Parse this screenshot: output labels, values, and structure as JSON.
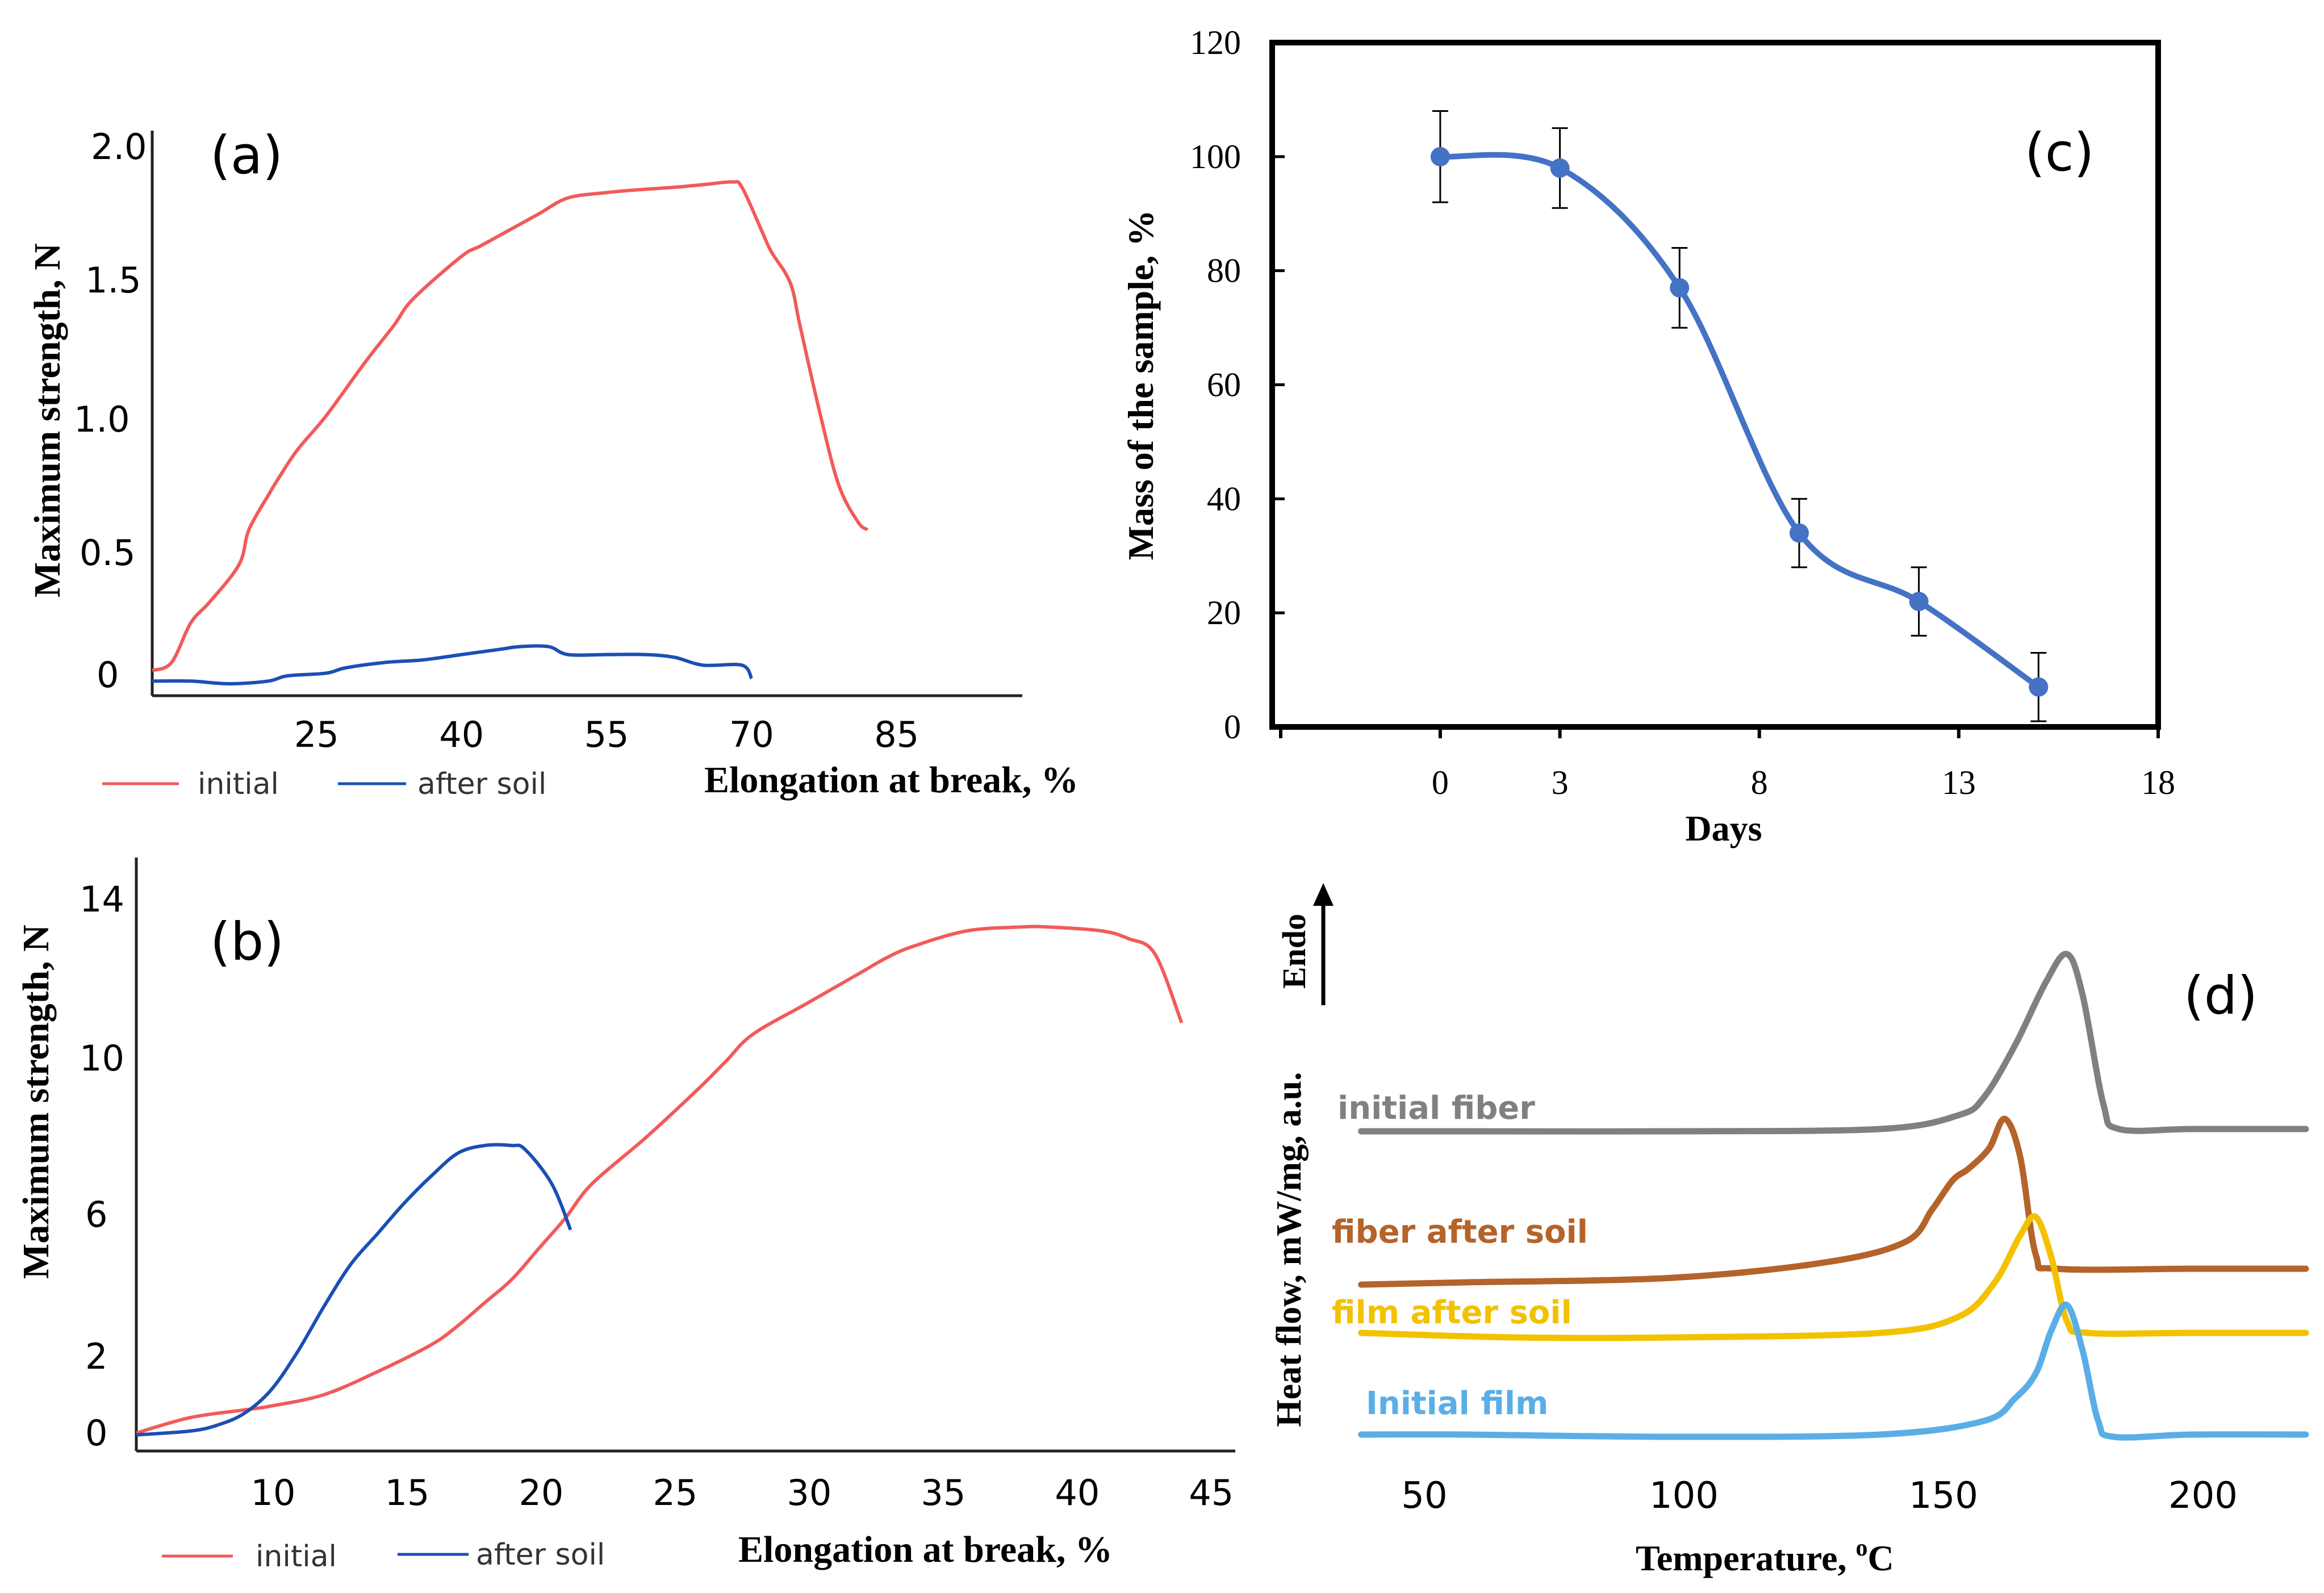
{
  "chart_data": [
    {
      "panel": "(a)",
      "type": "line",
      "xlabel": "Elongation at break, %",
      "ylabel": "Maximum strength, N",
      "xlim": [
        8,
        98
      ],
      "ylim": [
        -0.05,
        2.0
      ],
      "x_ticks": [
        "25",
        "40",
        "55",
        "70",
        "85"
      ],
      "x_tick_values": [
        25,
        40,
        55,
        70,
        85
      ],
      "y_ticks": [
        "0",
        "0.5",
        "1.0",
        "1.5",
        "2.0"
      ],
      "y_tick_values": [
        0,
        0.5,
        1.0,
        1.5,
        2.0
      ],
      "legend": [
        "initial",
        "after soil"
      ],
      "series": [
        {
          "name": "initial",
          "color": "#f25a5a",
          "x": [
            8,
            10,
            12,
            14,
            17,
            18,
            20,
            21,
            23,
            26,
            30,
            33,
            35,
            40,
            42,
            46,
            48,
            51,
            55,
            58,
            62,
            65,
            68,
            69,
            71,
            72,
            74,
            75,
            77,
            79,
            81,
            82
          ],
          "y": [
            0.02,
            0.05,
            0.2,
            0.28,
            0.42,
            0.55,
            0.68,
            0.74,
            0.85,
            0.98,
            1.18,
            1.32,
            1.42,
            1.58,
            1.62,
            1.7,
            1.74,
            1.8,
            1.82,
            1.83,
            1.84,
            1.85,
            1.86,
            1.84,
            1.68,
            1.6,
            1.48,
            1.32,
            1.0,
            0.72,
            0.58,
            0.55
          ]
        },
        {
          "name": "after soil",
          "color": "#1a4fb5",
          "x": [
            8,
            12,
            16,
            20,
            22,
            26,
            28,
            32,
            36,
            40,
            44,
            46,
            49,
            51,
            55,
            59,
            62,
            65,
            69,
            70
          ],
          "y": [
            -0.02,
            -0.02,
            -0.03,
            -0.02,
            0.0,
            0.01,
            0.03,
            0.05,
            0.06,
            0.08,
            0.1,
            0.11,
            0.11,
            0.08,
            0.08,
            0.08,
            0.07,
            0.04,
            0.04,
            -0.01
          ]
        }
      ]
    },
    {
      "panel": "(b)",
      "type": "line",
      "xlabel": "Elongation at break, %",
      "ylabel": "Maximum strength, N",
      "xlim": [
        5,
        46
      ],
      "ylim": [
        0,
        15.5
      ],
      "x_ticks": [
        "10",
        "15",
        "20",
        "25",
        "30",
        "35",
        "40",
        "45"
      ],
      "x_tick_values": [
        10,
        15,
        20,
        25,
        30,
        35,
        40,
        45
      ],
      "y_ticks": [
        "0",
        "2",
        "6",
        "10",
        "14"
      ],
      "y_tick_values": [
        0,
        2,
        6,
        10,
        14
      ],
      "legend": [
        "initial",
        "after soil"
      ],
      "series": [
        {
          "name": "initial",
          "color": "#f25a5a",
          "x": [
            5,
            7,
            9,
            10,
            12,
            14,
            16,
            17,
            18,
            19,
            20,
            21,
            22,
            24,
            26,
            27,
            28,
            30,
            32,
            33,
            34,
            36,
            38,
            39,
            41,
            42,
            43,
            44
          ],
          "y": [
            0.1,
            0.5,
            0.7,
            0.8,
            1.1,
            1.7,
            2.4,
            2.9,
            3.5,
            4.1,
            4.9,
            5.7,
            6.6,
            7.8,
            9.1,
            9.8,
            10.5,
            11.3,
            12.1,
            12.5,
            12.8,
            13.2,
            13.3,
            13.3,
            13.2,
            13.0,
            12.6,
            10.8
          ]
        },
        {
          "name": "after soil",
          "color": "#1a4fb5",
          "x": [
            5,
            7,
            8,
            9,
            10,
            11,
            12,
            13,
            14,
            15,
            16,
            17,
            18,
            19,
            19.5,
            20.5,
            21.2
          ],
          "y": [
            0.05,
            0.15,
            0.3,
            0.6,
            1.2,
            2.2,
            3.4,
            4.5,
            5.3,
            6.1,
            6.8,
            7.4,
            7.6,
            7.6,
            7.5,
            6.6,
            5.4
          ]
        }
      ]
    },
    {
      "panel": "(c)",
      "type": "line",
      "xlabel": "Days",
      "ylabel": "Mass of the sample, %",
      "xlim": [
        -4,
        18
      ],
      "ylim": [
        0,
        120
      ],
      "x_ticks": [
        "0",
        "3",
        "8",
        "13",
        "18"
      ],
      "x_tick_values": [
        0,
        3,
        8,
        13,
        18
      ],
      "y_ticks": [
        "0",
        "20",
        "40",
        "60",
        "80",
        "100",
        "120"
      ],
      "y_tick_values": [
        0,
        20,
        40,
        60,
        80,
        100,
        120
      ],
      "series": [
        {
          "name": "mass",
          "color": "#4472c4",
          "x": [
            0,
            3,
            6,
            9,
            12,
            15
          ],
          "y": [
            100,
            98,
            77,
            34,
            22,
            7
          ],
          "err": [
            8,
            7,
            7,
            6,
            6,
            6
          ]
        }
      ]
    },
    {
      "panel": "(d)",
      "type": "line",
      "xlabel": "Temperature, ",
      "xlabel_sup": "o",
      "xlabel_tail": "C",
      "ylabel": "Heat flow, mW/mg, a.u.",
      "endo_label": "Endo",
      "xlim": [
        36,
        222
      ],
      "x_ticks": [
        "50",
        "100",
        "150",
        "200"
      ],
      "x_tick_values": [
        50,
        100,
        150,
        200
      ],
      "series": [
        {
          "name": "initial fiber",
          "color": "#808080",
          "x": [
            40,
            60,
            100,
            140,
            155,
            160,
            166,
            172,
            176,
            179,
            183,
            186,
            200,
            222
          ],
          "y": [
            0.2,
            0.2,
            0.2,
            0.3,
            0.9,
            1.7,
            4.0,
            6.8,
            8.0,
            6.2,
            1.4,
            0.3,
            0.3,
            0.3
          ]
        },
        {
          "name": "fiber after soil",
          "color": "#b4632a",
          "x": [
            40,
            60,
            100,
            130,
            145,
            150,
            154,
            157,
            161,
            164,
            167,
            170,
            174,
            200,
            222
          ],
          "y": [
            0.2,
            0.3,
            0.5,
            1.2,
            2.1,
            3.5,
            4.8,
            5.3,
            6.2,
            7.5,
            5.8,
            1.5,
            0.9,
            0.9,
            0.9
          ]
        },
        {
          "name": "film after soil",
          "color": "#f2c200",
          "x": [
            40,
            70,
            100,
            140,
            155,
            162,
            167,
            170,
            173,
            176,
            180,
            200,
            222
          ],
          "y": [
            0.2,
            0.0,
            0.0,
            0.2,
            0.9,
            2.4,
            4.5,
            5.3,
            3.5,
            0.7,
            0.2,
            0.2,
            0.2
          ]
        },
        {
          "name": "Initial film",
          "color": "#5aaee6",
          "x": [
            40,
            60,
            100,
            140,
            160,
            166,
            170,
            173,
            176,
            179,
            182,
            185,
            200,
            222
          ],
          "y": [
            0.3,
            0.3,
            0.2,
            0.3,
            0.9,
            1.9,
            3.0,
            4.9,
            6.0,
            4.0,
            0.9,
            0.2,
            0.3,
            0.3
          ]
        }
      ]
    }
  ]
}
